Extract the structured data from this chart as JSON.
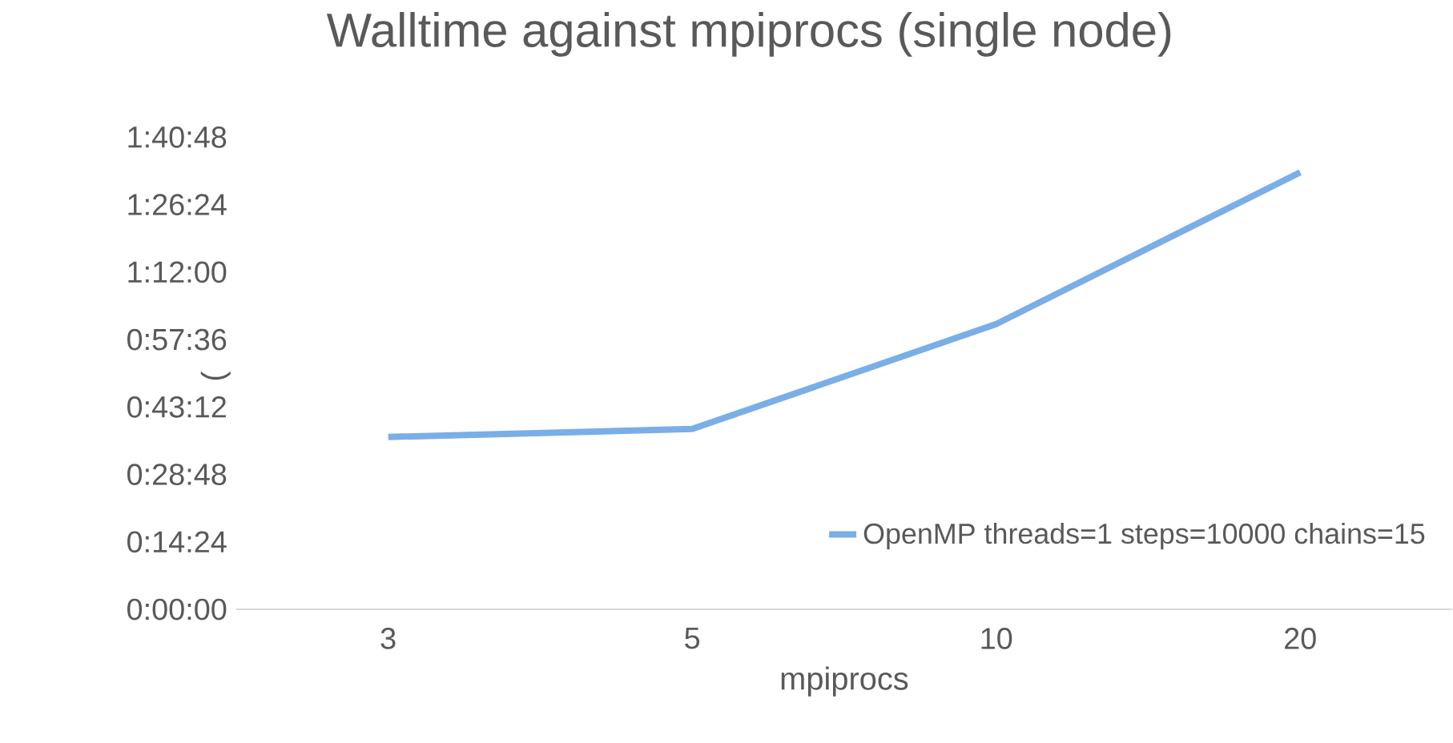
{
  "chart_data": {
    "type": "line",
    "title": "Walltime against mpiprocs (single node)",
    "xlabel": "mpiprocs",
    "ylabel": "(",
    "categories": [
      "3",
      "5",
      "10",
      "20"
    ],
    "series": [
      {
        "name": "OpenMP threads=1 steps=10000 chains=15",
        "color": "#7aaee6",
        "values": [
          36.8,
          38.5,
          60.9,
          93.3
        ]
      }
    ],
    "ylim": [
      0,
      100.8
    ],
    "yticks": [
      {
        "value": 0,
        "label": "0:00:00"
      },
      {
        "value": 14.4,
        "label": "0:14:24"
      },
      {
        "value": 28.8,
        "label": "0:28:48"
      },
      {
        "value": 43.2,
        "label": "0:43:12"
      },
      {
        "value": 57.6,
        "label": "0:57:36"
      },
      {
        "value": 72,
        "label": "1:12:00"
      },
      {
        "value": 86.4,
        "label": "1:26:24"
      },
      {
        "value": 100.8,
        "label": "1:40:48"
      }
    ],
    "legend": "bottom right",
    "marker": "none",
    "line_style": "solid"
  }
}
